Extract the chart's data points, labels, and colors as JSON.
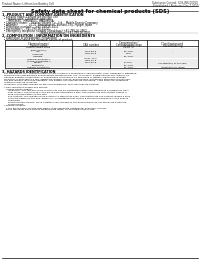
{
  "bg_color": "#ffffff",
  "header_left": "Product Name: Lithium Ion Battery Cell",
  "header_right_line1": "Substance Control: SDS-INS-00010",
  "header_right_line2": "Established / Revision: Dec.7.2010",
  "title": "Safety data sheet for chemical products (SDS)",
  "section1_title": "1. PRODUCT AND COMPANY IDENTIFICATION",
  "section1_lines": [
    "  • Product name: Lithium Ion Battery Cell",
    "  • Product code: Cylindrical-type cell",
    "       IMR18650, IMR18650L, IMR18650A",
    "  • Company name:    Seavey Electric Co., Ltd.,  Mobile Energy Company",
    "  • Address:             20-21  Kamitakatori, Sumoto-City, Hyogo, Japan",
    "  • Telephone number:    +81-799-26-4111",
    "  • Fax number:   +81-799-26-4120",
    "  • Emergency telephone number (Weekdays) +81-799-26-2962",
    "                                           (Night and holidays) +81-799-26-4101"
  ],
  "section2_title": "2. COMPOSITION / INFORMATION ON INGREDIENTS",
  "section2_subtitle": "  • Substance or preparation: Preparation",
  "section2_table_title": "  • Information about the chemical nature of product:",
  "table_col1_header": [
    "Chemical name /",
    "Generic name"
  ],
  "table_col2_header": [
    "CAS number"
  ],
  "table_col3_header": [
    "Concentration /",
    "Concentration range",
    "(30-85°C)"
  ],
  "table_col4_header": [
    "Classification and",
    "hazard labeling"
  ],
  "table_rows": [
    [
      "Lithium cobalt oxide",
      "-",
      "-",
      "-"
    ],
    [
      "(LiMn-CoMO₂)",
      "",
      "",
      ""
    ],
    [
      "Iron",
      "7439-89-6",
      "15~25%",
      "-"
    ],
    [
      "Aluminum",
      "7429-90-5",
      "2.6%",
      "-"
    ],
    [
      "Graphite",
      "",
      "10~25%",
      ""
    ],
    [
      "(Natural graphite-1",
      "77782-42-5",
      "",
      ""
    ],
    [
      "(Artificial graphite-1",
      "7782-42-5",
      "",
      ""
    ],
    [
      "Copper",
      "7440-50-8",
      "5~10%",
      "Sensitization of the skin"
    ],
    [
      "Electrolyte",
      "-",
      "10~20%",
      "-"
    ],
    [
      "Organic electrolyte",
      "-",
      "10~25%",
      "Inflammatory liquid"
    ]
  ],
  "section3_title": "3. HAZARDS IDENTIFICATION",
  "section3_text": [
    "   For this battery cell, chemical materials are stored in a hermetically sealed metal case, designed to withstand",
    "   temperatures and pressure environments during normal use. As a result, during normal use, there is no",
    "   physical dangers of explosion or evaporation and there is no likelihood of battery electrolyte leakage.",
    "   However, if exposed to a fire, added mechanical shocks, decomposed, unintended abnormal misuse use,",
    "   the gas release cannot be operated. The battery cell case will be punctured, If fire particles, hazardous",
    "   materials may be released.",
    "   Moreover, if heated strongly by the surrounding fire, toxic gas may be emitted."
  ],
  "section3_bullets": [
    "  • Most important hazard and effects:",
    "     Human health effects:",
    "        Inhalation: The release of the electrolyte has an anesthesia action and stimulates a respiratory tract.",
    "        Skin contact: The release of the electrolyte stimulates a skin. The electrolyte skin contact causes a",
    "        sore and stimulation on the skin.",
    "        Eye contact: The release of the electrolyte stimulates eyes. The electrolyte eye contact causes a sore",
    "        and stimulation on the eye. Especially, a substance that causes a strong inflammation of the eyes is",
    "        contained.",
    "        Environmental effects: Since a battery cell remains in the environment, do not throw out it into the",
    "        environment.",
    "  • Specific hazards:",
    "     If the electrolyte contacts with water, it will generate detrimental hydrogen fluoride.",
    "     Since the liquid electrolyte is inflammable liquid, do not bring close to fire."
  ]
}
